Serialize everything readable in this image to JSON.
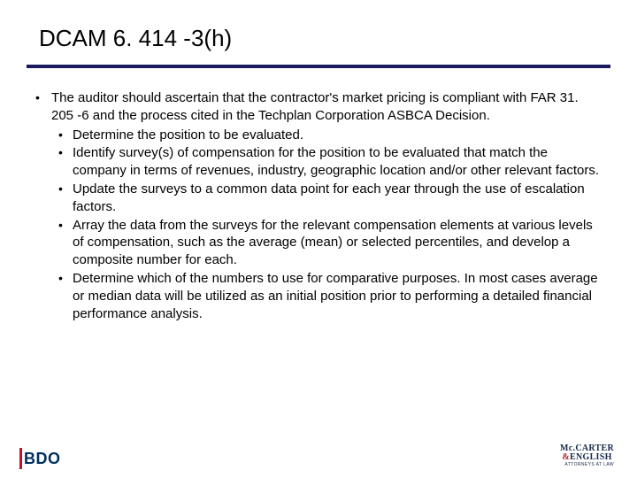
{
  "title": "DCAM 6. 414 -3(h)",
  "rule_color": "#1a1a5c",
  "text_color": "#000000",
  "background_color": "#ffffff",
  "font_family": "Arial",
  "title_fontsize": 26,
  "body_fontsize": 15,
  "main_bullet": "The auditor should ascertain that the contractor's market pricing is compliant with FAR 31. 205 -6 and the process cited in the Techplan Corporation ASBCA Decision.",
  "sub_bullets": [
    "Determine the position to be evaluated.",
    "Identify survey(s) of compensation for the position to be evaluated that match the company in terms of revenues, industry, geographic location and/or other relevant factors.",
    "Update the surveys to a common data point for each year through the use of escalation factors.",
    "Array the data from the surveys for the relevant compensation elements at various levels of compensation, such as the average (mean) or selected percentiles, and develop a composite number for each.",
    "Determine which of the numbers to use for comparative purposes. In most cases average or median data will be utilized as an initial position prior to performing a detailed financial performance analysis."
  ],
  "logo_left": {
    "text": "BDO",
    "bar_color": "#c8102e",
    "text_color": "#002f5f"
  },
  "logo_right": {
    "line1_a": "Mc.CARTER",
    "line1_b": "ENGLISH",
    "amp": "&",
    "sub": "ATTORNEYS AT LAW",
    "text_color": "#16294a",
    "amp_color": "#b9262c"
  }
}
